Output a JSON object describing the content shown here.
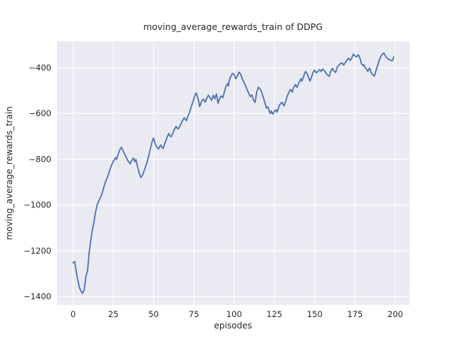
{
  "figure": {
    "background": "#ffffff"
  },
  "chart_data": {
    "type": "line",
    "title": "moving_average_rewards_train of DDPG",
    "xlabel": "episodes",
    "ylabel": "moving_average_rewards_train",
    "xlim": [
      -9.95,
      208.95
    ],
    "ylim": [
      -1437,
      -285
    ],
    "xticks": [
      0,
      25,
      50,
      75,
      100,
      125,
      150,
      175,
      200
    ],
    "yticks": [
      -1400,
      -1200,
      -1000,
      -800,
      -600,
      -400
    ],
    "grid": true,
    "legend": false,
    "styles": {
      "axes_background": "#EAEAF2",
      "grid_color": "#FFFFFF",
      "line_color": "#4C72B0",
      "text_color": "#262626",
      "line_width": 1.8
    },
    "series": [
      {
        "name": "moving_average_rewards_train",
        "points": [
          [
            0,
            -1253
          ],
          [
            1,
            -1247
          ],
          [
            2,
            -1292
          ],
          [
            3,
            -1330
          ],
          [
            4,
            -1362
          ],
          [
            5,
            -1378
          ],
          [
            6,
            -1386
          ],
          [
            7,
            -1368
          ],
          [
            8,
            -1312
          ],
          [
            8.5,
            -1298
          ],
          [
            9,
            -1288
          ],
          [
            10,
            -1210
          ],
          [
            11,
            -1155
          ],
          [
            12,
            -1110
          ],
          [
            13,
            -1075
          ],
          [
            14,
            -1030
          ],
          [
            15,
            -1000
          ],
          [
            16,
            -983
          ],
          [
            17,
            -968
          ],
          [
            18,
            -950
          ],
          [
            19,
            -925
          ],
          [
            20,
            -902
          ],
          [
            21,
            -885
          ],
          [
            22,
            -865
          ],
          [
            23,
            -843
          ],
          [
            24,
            -825
          ],
          [
            25,
            -810
          ],
          [
            26,
            -798
          ],
          [
            26.5,
            -793
          ],
          [
            27,
            -801
          ],
          [
            28,
            -778
          ],
          [
            29,
            -760
          ],
          [
            30,
            -748
          ],
          [
            31,
            -762
          ],
          [
            32,
            -778
          ],
          [
            33,
            -792
          ],
          [
            34,
            -806
          ],
          [
            35,
            -816
          ],
          [
            35.5,
            -821
          ],
          [
            36,
            -812
          ],
          [
            37,
            -798
          ],
          [
            37.5,
            -795
          ],
          [
            38,
            -806
          ],
          [
            38.5,
            -811
          ],
          [
            39,
            -801
          ],
          [
            40,
            -830
          ],
          [
            41,
            -858
          ],
          [
            42,
            -880
          ],
          [
            43,
            -872
          ],
          [
            44,
            -853
          ],
          [
            45,
            -833
          ],
          [
            46,
            -812
          ],
          [
            47,
            -785
          ],
          [
            48,
            -755
          ],
          [
            49,
            -725
          ],
          [
            50,
            -708
          ],
          [
            51,
            -733
          ],
          [
            52,
            -746
          ],
          [
            53,
            -756
          ],
          [
            54,
            -742
          ],
          [
            54.5,
            -738
          ],
          [
            55,
            -748
          ],
          [
            56,
            -753
          ],
          [
            57,
            -730
          ],
          [
            58,
            -712
          ],
          [
            59,
            -695
          ],
          [
            59.5,
            -688
          ],
          [
            60,
            -696
          ],
          [
            61,
            -702
          ],
          [
            62,
            -686
          ],
          [
            63,
            -668
          ],
          [
            64,
            -657
          ],
          [
            65,
            -668
          ],
          [
            66,
            -661
          ],
          [
            67,
            -645
          ],
          [
            68,
            -631
          ],
          [
            69,
            -619
          ],
          [
            70,
            -628
          ],
          [
            70.5,
            -631
          ],
          [
            71,
            -616
          ],
          [
            72,
            -601
          ],
          [
            73,
            -580
          ],
          [
            74,
            -558
          ],
          [
            75,
            -536
          ],
          [
            76,
            -514
          ],
          [
            76.5,
            -511
          ],
          [
            77,
            -522
          ],
          [
            78,
            -546
          ],
          [
            78.5,
            -570
          ],
          [
            79,
            -563
          ],
          [
            80,
            -544
          ],
          [
            81,
            -538
          ],
          [
            82,
            -551
          ],
          [
            83,
            -534
          ],
          [
            84,
            -521
          ],
          [
            85,
            -531
          ],
          [
            86,
            -543
          ],
          [
            87,
            -521
          ],
          [
            88,
            -536
          ],
          [
            89,
            -515
          ],
          [
            90,
            -556
          ],
          [
            91,
            -534
          ],
          [
            92,
            -524
          ],
          [
            93,
            -531
          ],
          [
            94,
            -504
          ],
          [
            95,
            -480
          ],
          [
            96,
            -469
          ],
          [
            96.5,
            -480
          ],
          [
            97,
            -455
          ],
          [
            98,
            -437
          ],
          [
            99,
            -425
          ],
          [
            100,
            -431
          ],
          [
            101,
            -448
          ],
          [
            101.5,
            -444
          ],
          [
            102,
            -436
          ],
          [
            103,
            -420
          ],
          [
            104,
            -428
          ],
          [
            105,
            -448
          ],
          [
            106,
            -463
          ],
          [
            107,
            -478
          ],
          [
            108,
            -496
          ],
          [
            109,
            -511
          ],
          [
            110,
            -527
          ],
          [
            111,
            -519
          ],
          [
            112,
            -541
          ],
          [
            113,
            -552
          ],
          [
            114,
            -506
          ],
          [
            115,
            -486
          ],
          [
            116,
            -492
          ],
          [
            117,
            -506
          ],
          [
            118,
            -528
          ],
          [
            119,
            -551
          ],
          [
            120,
            -576
          ],
          [
            121,
            -571
          ],
          [
            122,
            -596
          ],
          [
            122.5,
            -601
          ],
          [
            123,
            -589
          ],
          [
            124,
            -603
          ],
          [
            125,
            -591
          ],
          [
            126,
            -584
          ],
          [
            126.5,
            -594
          ],
          [
            127,
            -588
          ],
          [
            128,
            -566
          ],
          [
            129,
            -555
          ],
          [
            130,
            -552
          ],
          [
            130.5,
            -563
          ],
          [
            131,
            -567
          ],
          [
            132,
            -547
          ],
          [
            133,
            -524
          ],
          [
            134,
            -507
          ],
          [
            135,
            -495
          ],
          [
            136,
            -507
          ],
          [
            137,
            -487
          ],
          [
            138,
            -474
          ],
          [
            139,
            -487
          ],
          [
            140,
            -469
          ],
          [
            141,
            -455
          ],
          [
            141.5,
            -448
          ],
          [
            142,
            -459
          ],
          [
            143,
            -442
          ],
          [
            144,
            -420
          ],
          [
            144.5,
            -417
          ],
          [
            145,
            -423
          ],
          [
            146,
            -438
          ],
          [
            147,
            -459
          ],
          [
            148,
            -442
          ],
          [
            149,
            -420
          ],
          [
            150,
            -411
          ],
          [
            151,
            -423
          ],
          [
            152,
            -417
          ],
          [
            153,
            -409
          ],
          [
            154,
            -416
          ],
          [
            155,
            -406
          ],
          [
            156,
            -413
          ],
          [
            157,
            -424
          ],
          [
            158,
            -433
          ],
          [
            159,
            -438
          ],
          [
            160,
            -415
          ],
          [
            161,
            -403
          ],
          [
            162,
            -416
          ],
          [
            163,
            -421
          ],
          [
            164,
            -397
          ],
          [
            165,
            -390
          ],
          [
            166,
            -382
          ],
          [
            167,
            -379
          ],
          [
            167.5,
            -384
          ],
          [
            168,
            -389
          ],
          [
            169,
            -378
          ],
          [
            170,
            -367
          ],
          [
            171,
            -359
          ],
          [
            172,
            -369
          ],
          [
            173,
            -357
          ],
          [
            174,
            -341
          ],
          [
            175,
            -349
          ],
          [
            176,
            -353
          ],
          [
            177,
            -344
          ],
          [
            178,
            -357
          ],
          [
            179,
            -382
          ],
          [
            180,
            -391
          ],
          [
            180.5,
            -387
          ],
          [
            181,
            -396
          ],
          [
            182,
            -406
          ],
          [
            183,
            -416
          ],
          [
            184,
            -402
          ],
          [
            184.5,
            -409
          ],
          [
            185,
            -422
          ],
          [
            186,
            -431
          ],
          [
            187,
            -437
          ],
          [
            187.5,
            -428
          ],
          [
            188,
            -414
          ],
          [
            189,
            -391
          ],
          [
            190,
            -369
          ],
          [
            191,
            -352
          ],
          [
            192,
            -341
          ],
          [
            193,
            -336
          ],
          [
            194,
            -350
          ],
          [
            195,
            -359
          ],
          [
            196,
            -365
          ],
          [
            197,
            -366
          ],
          [
            198,
            -371
          ],
          [
            198.5,
            -366
          ],
          [
            199,
            -353
          ]
        ]
      }
    ]
  }
}
